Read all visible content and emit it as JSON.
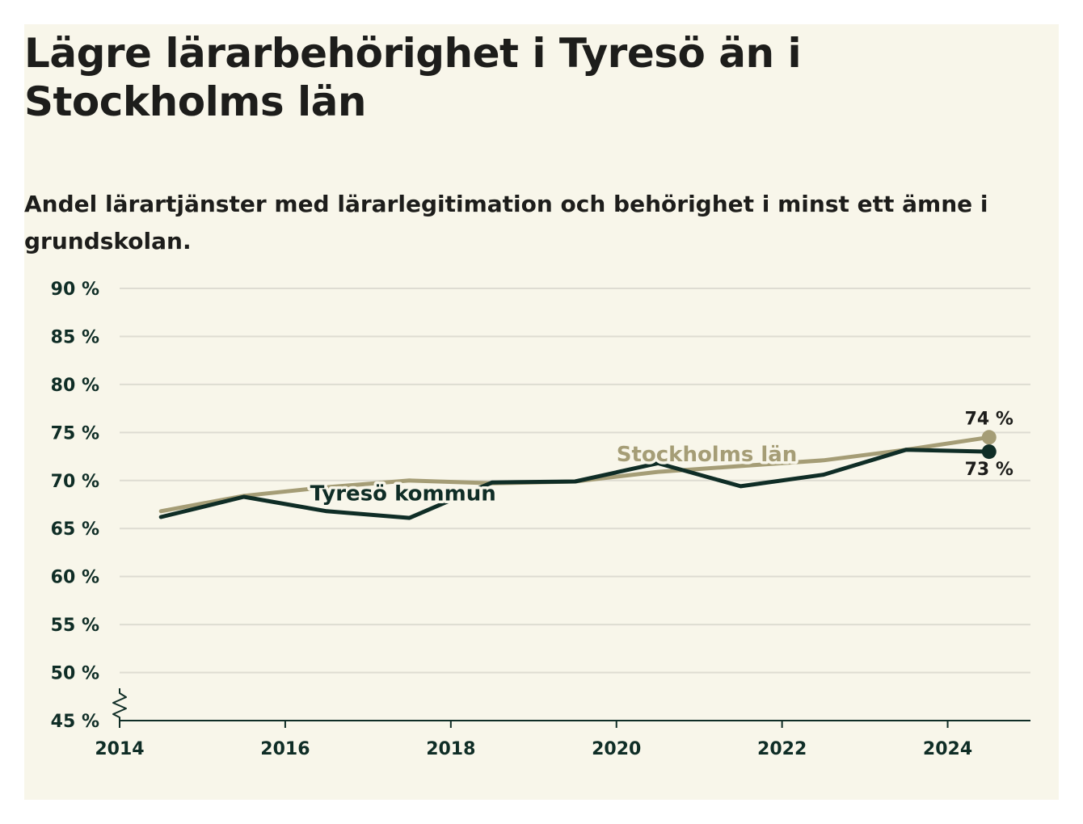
{
  "title": "Lägre lärarbehörighet i Tyresö än i Stockholms län",
  "subtitle": "Andel lärartjänster med lärarlegitimation och behörighet i minst ett ämne i grundskolan.",
  "colors": {
    "background": "#f8f6ea",
    "stockholm": "#a59d76",
    "tyreso": "#0f2d26",
    "grid": "#dedcd2",
    "text": "#1d1d1b"
  },
  "chart_data": {
    "type": "line",
    "title": "Lägre lärarbehörighet i Tyresö än i Stockholms län",
    "subtitle": "Andel lärartjänster med lärarlegitimation och behörighet i minst ett ämne i grundskolan.",
    "xlabel": "",
    "ylabel": "",
    "x_ticks": [
      2014,
      2016,
      2018,
      2020,
      2022,
      2024
    ],
    "x_tick_labels": [
      "2014",
      "2016",
      "2018",
      "2020",
      "2022",
      "2024"
    ],
    "xlim": [
      2014,
      2025
    ],
    "y_ticks": [
      45,
      50,
      55,
      60,
      65,
      70,
      75,
      80,
      85,
      90
    ],
    "y_tick_labels": [
      "45 %",
      "50 %",
      "55 %",
      "60 %",
      "65 %",
      "70 %",
      "75 %",
      "80 %",
      "85 %",
      "90 %"
    ],
    "ylim": [
      45,
      90
    ],
    "y_axis_break": true,
    "grid": true,
    "legend": "direct labels on lines",
    "x": [
      2014.5,
      2015.5,
      2016.5,
      2017.5,
      2018.5,
      2019.5,
      2020.5,
      2021.5,
      2022.5,
      2023.5,
      2024.5
    ],
    "series": [
      {
        "name": "Stockholms län",
        "color": "#a59d76",
        "values": [
          66.8,
          68.4,
          69.3,
          70.0,
          69.7,
          69.9,
          70.9,
          71.5,
          72.1,
          73.2,
          74.5
        ],
        "end_label": "74 %"
      },
      {
        "name": "Tyresö kommun",
        "color": "#0f2d26",
        "values": [
          66.2,
          68.3,
          66.8,
          66.1,
          69.8,
          69.9,
          71.8,
          69.4,
          70.6,
          73.2,
          73.0
        ],
        "end_label": "73 %"
      }
    ]
  }
}
